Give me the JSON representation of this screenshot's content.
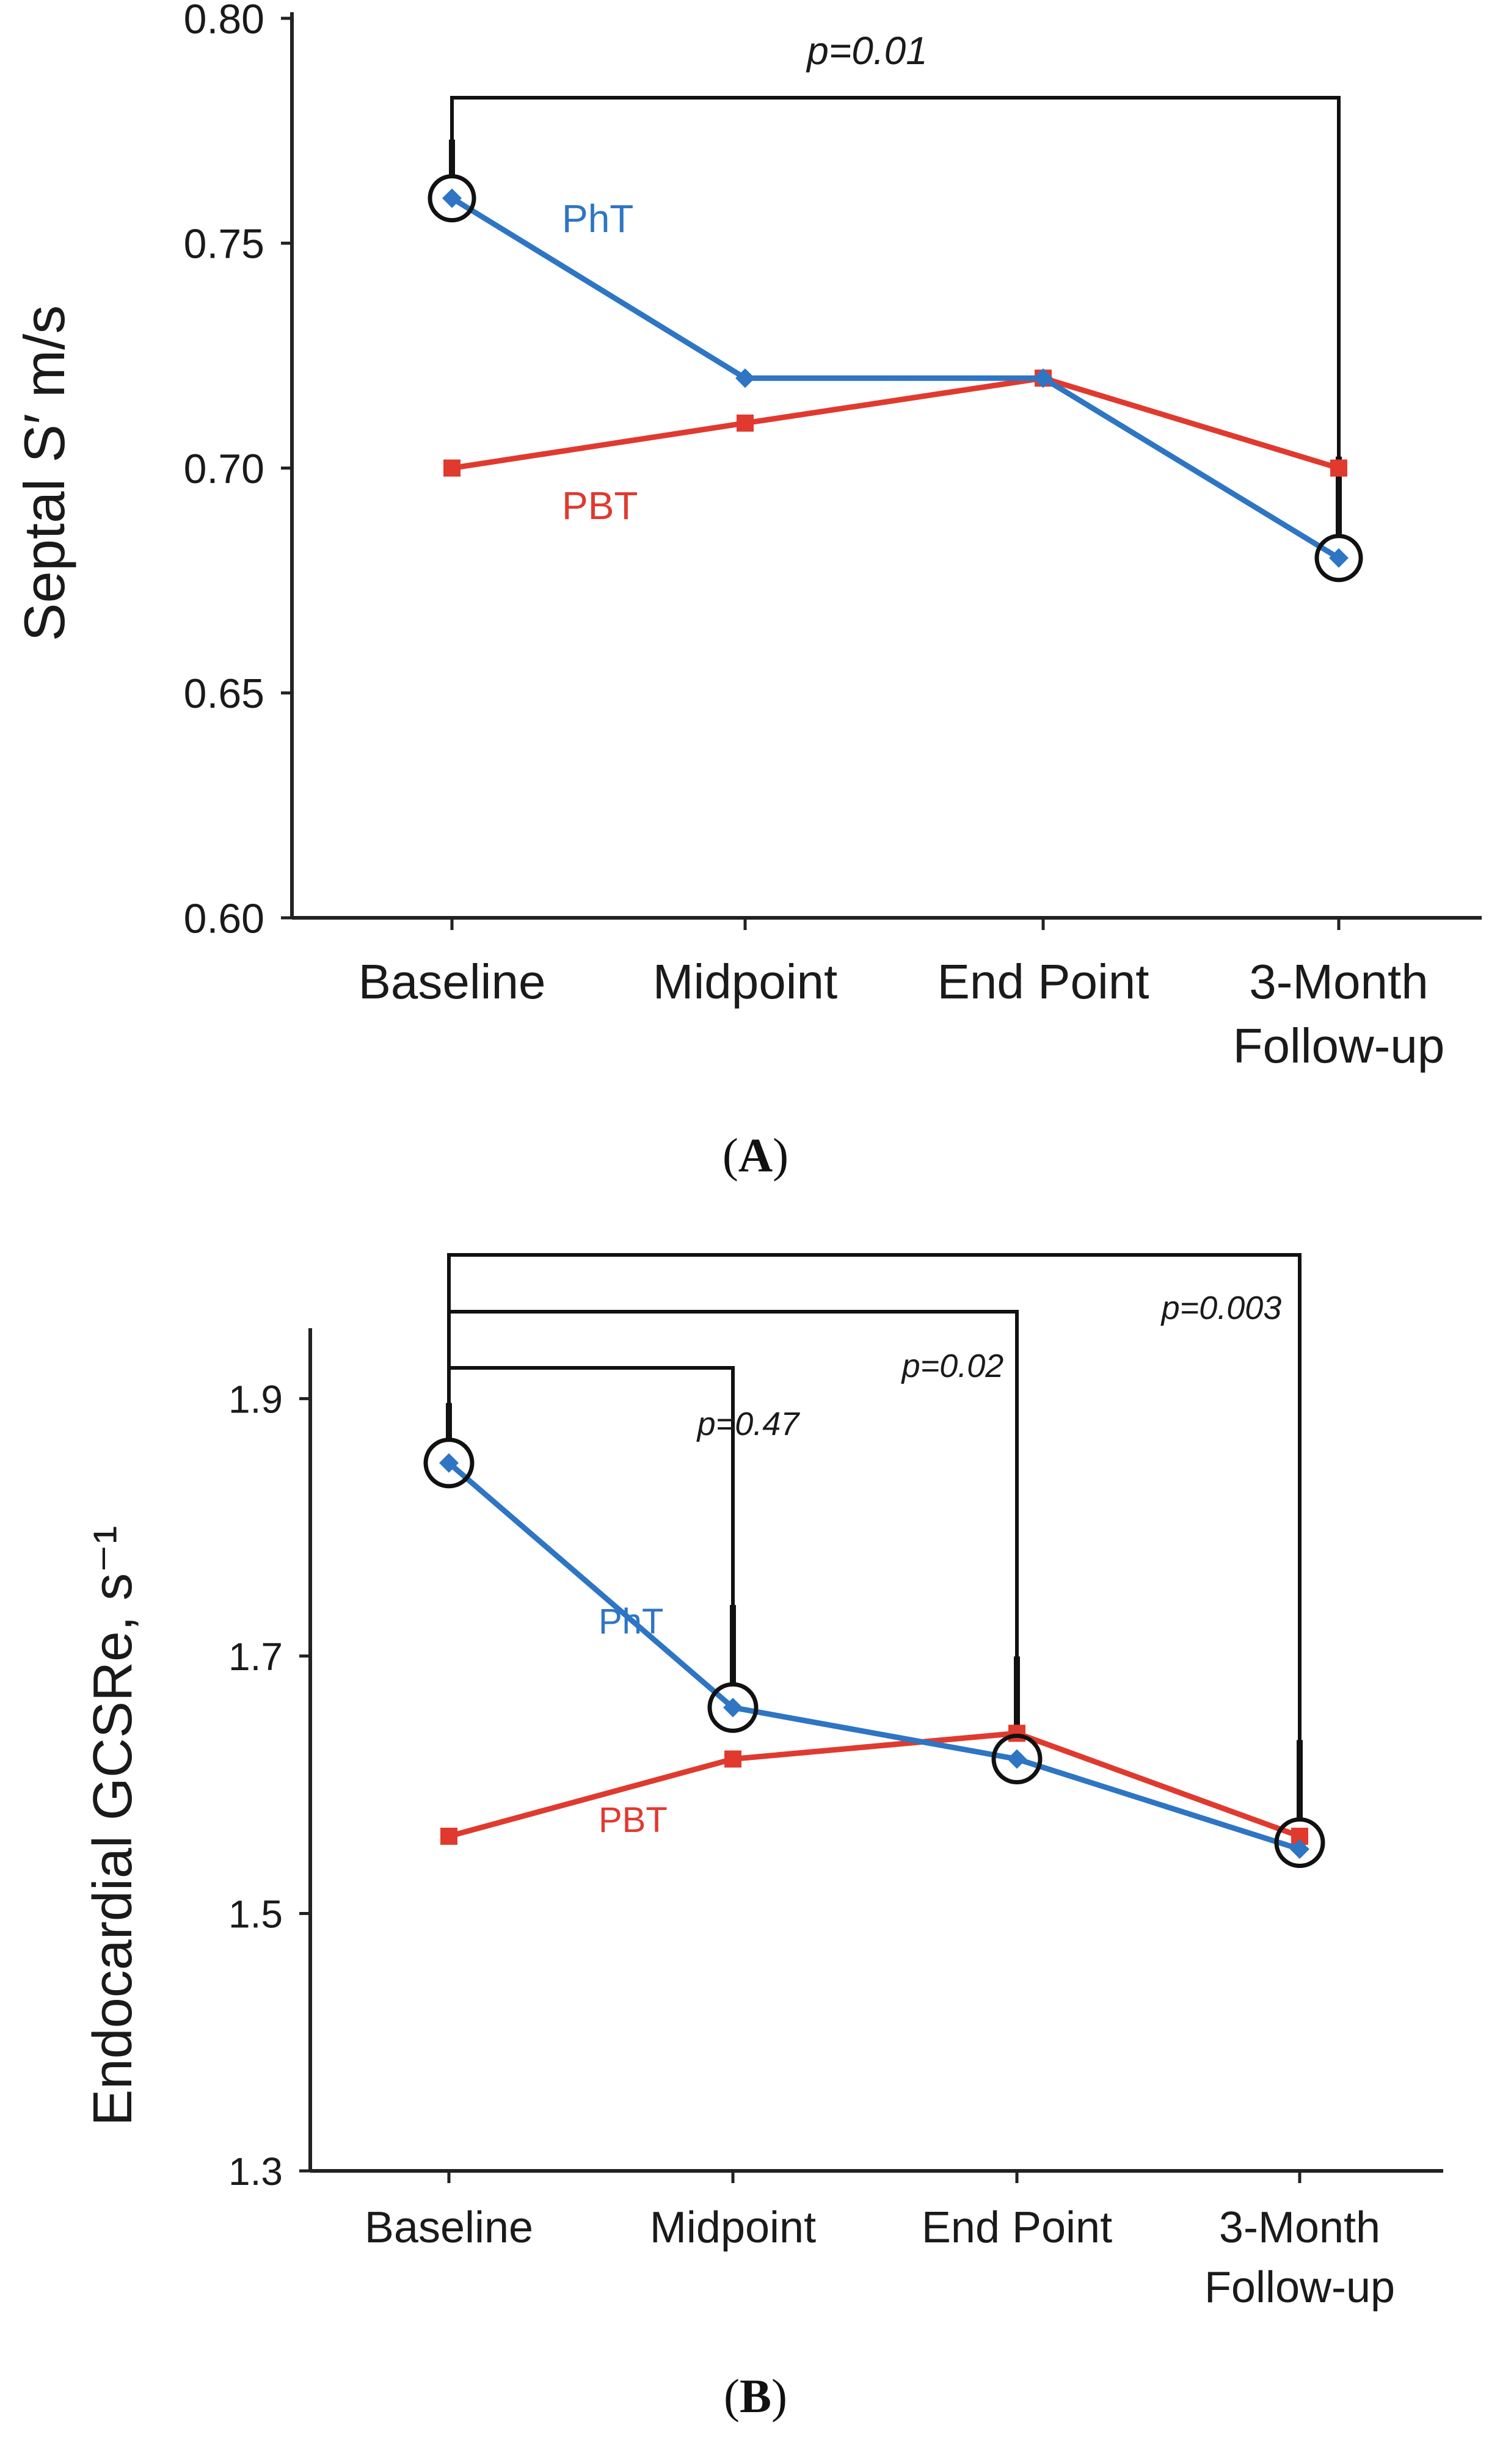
{
  "chart_data": [
    {
      "type": "line",
      "panel_label": "A",
      "ylabel": "Septal S′ m/s",
      "ylim": [
        0.6,
        0.8
      ],
      "yticks": [
        "0.60",
        "0.65",
        "0.70",
        "0.75",
        "0.80"
      ],
      "categories": [
        "Baseline",
        "Midpoint",
        "End Point",
        "3-Month Follow-up"
      ],
      "series": [
        {
          "name": "PhT",
          "color": "#2e75c4",
          "marker": "diamond",
          "values": [
            0.76,
            0.72,
            0.72,
            0.68
          ]
        },
        {
          "name": "PBT",
          "color": "#e03a2f",
          "marker": "square",
          "values": [
            0.7,
            0.71,
            0.72,
            0.7
          ]
        }
      ],
      "highlighted_points": [
        [
          0,
          0.76
        ],
        [
          3,
          0.68
        ]
      ],
      "annotations": [
        {
          "label": "p=0.01",
          "from": 0,
          "to": 3
        }
      ]
    },
    {
      "type": "line",
      "panel_label": "B",
      "ylabel": "Endocardial GCSRe, s⁻¹",
      "ylim": [
        1.3,
        1.95
      ],
      "yticks": [
        "1.3",
        "1.5",
        "1.7",
        "1.9"
      ],
      "categories": [
        "Baseline",
        "Midpoint",
        "End Point",
        "3-Month Follow-up"
      ],
      "series": [
        {
          "name": "PhT",
          "color": "#2e75c4",
          "marker": "diamond",
          "values": [
            1.85,
            1.66,
            1.62,
            1.55
          ]
        },
        {
          "name": "PBT",
          "color": "#e03a2f",
          "marker": "square",
          "values": [
            1.56,
            1.62,
            1.64,
            1.56
          ]
        }
      ],
      "highlighted_points": [
        [
          0,
          1.85
        ],
        [
          1,
          1.66
        ],
        [
          2,
          1.62
        ],
        [
          3,
          1.555
        ]
      ],
      "annotations": [
        {
          "label": "p=0.47",
          "from": 0,
          "to": 1
        },
        {
          "label": "p=0.02",
          "from": 0,
          "to": 2
        },
        {
          "label": "p=0.003",
          "from": 0,
          "to": 3
        }
      ]
    }
  ]
}
